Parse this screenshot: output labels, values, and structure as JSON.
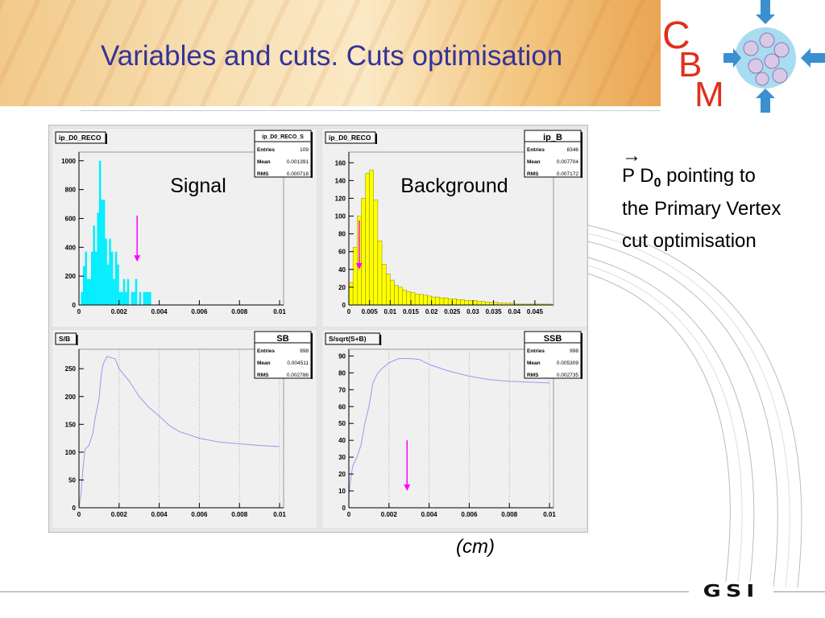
{
  "slide": {
    "title": "Variables and cuts. Cuts optimisation",
    "side_arrow": "→",
    "side_line1_a": "P D",
    "side_line1_sub": "0",
    "side_line1_b": " pointing to",
    "side_line2": "the Primary Vertex",
    "side_line3": "cut optimisation",
    "unit_label": "(cm)",
    "logo_text": "CBM",
    "footer_logo_text": "GSI"
  },
  "colors": {
    "title": "#33339a",
    "signal_fill": "#00eeff",
    "background_fill": "#ffff00",
    "curve": "#9999ee",
    "arrow": "#ff00ff"
  },
  "chart_data": [
    {
      "type": "bar",
      "title": "ip_D0_RECO",
      "label": "Signal",
      "stats": {
        "name": "ip_D0_RECO_S",
        "entries": "109",
        "mean": "0.001391",
        "rms": "0.000718"
      },
      "xlim": [
        0,
        0.0102
      ],
      "ylim": [
        0,
        1060
      ],
      "xticks": [
        "0",
        "0.002",
        "0.004",
        "0.006",
        "0.008",
        "0.01"
      ],
      "xtick_values": [
        0,
        0.002,
        0.004,
        0.006,
        0.008,
        0.01
      ],
      "yticks": [
        0,
        200,
        400,
        600,
        800,
        1000
      ],
      "bin_start": 0.0001,
      "bin_width": 0.0001,
      "values": [
        90,
        270,
        370,
        180,
        180,
        370,
        550,
        370,
        640,
        1000,
        730,
        730,
        460,
        280,
        460,
        370,
        180,
        370,
        280,
        90,
        90,
        180,
        90,
        180,
        0,
        90,
        90,
        180,
        0,
        90,
        0,
        90,
        90,
        90,
        90
      ],
      "arrow": {
        "x": 0.0029,
        "from": 620,
        "to": 300
      }
    },
    {
      "type": "bar",
      "title": "ip_D0_RECO",
      "label": "Background",
      "stats": {
        "name": "ip_B",
        "entries": "8346",
        "mean": "0.007704",
        "rms": "0.007172"
      },
      "xlim": [
        0,
        0.0495
      ],
      "ylim": [
        0,
        172
      ],
      "xticks": [
        "0",
        "0.005",
        "0.01",
        "0.015",
        "0.02",
        "0.025",
        "0.03",
        "0.035",
        "0.04",
        "0.045"
      ],
      "xtick_values": [
        0,
        0.005,
        0.01,
        0.015,
        0.02,
        0.025,
        0.03,
        0.035,
        0.04,
        0.045
      ],
      "yticks": [
        0,
        20,
        40,
        60,
        80,
        100,
        120,
        140,
        160
      ],
      "bin_start": 0,
      "bin_width": 0.001,
      "values": [
        25,
        65,
        100,
        120,
        148,
        152,
        118,
        72,
        46,
        35,
        28,
        22,
        20,
        17,
        15,
        14,
        12,
        12,
        11,
        10,
        9,
        9,
        8,
        8,
        7,
        7,
        6,
        6,
        5,
        5,
        5,
        4,
        4,
        3,
        3,
        3,
        2,
        2,
        2,
        2,
        1,
        1,
        1,
        1,
        1,
        1,
        1,
        1,
        1
      ],
      "arrow": {
        "x": 0.0025,
        "from": 95,
        "to": 40
      }
    },
    {
      "type": "line",
      "title": "S/B",
      "stats": {
        "name": "SB",
        "entries": "998",
        "mean": "0.004511",
        "rms": "0.002786"
      },
      "xlim": [
        0,
        0.0102
      ],
      "ylim": [
        0,
        285
      ],
      "xticks": [
        "0",
        "0.002",
        "0.004",
        "0.006",
        "0.008",
        "0.01"
      ],
      "xtick_values": [
        0,
        0.002,
        0.004,
        0.006,
        0.008,
        0.01
      ],
      "yticks": [
        0,
        50,
        100,
        150,
        200,
        250
      ],
      "x": [
        0,
        0.0001,
        0.0002,
        0.0003,
        0.0005,
        0.0007,
        0.0008,
        0.001,
        0.0011,
        0.0012,
        0.0014,
        0.0016,
        0.0018,
        0.002,
        0.0025,
        0.003,
        0.0035,
        0.004,
        0.0045,
        0.005,
        0.006,
        0.007,
        0.008,
        0.009,
        0.01
      ],
      "y": [
        0,
        25,
        70,
        105,
        112,
        135,
        160,
        195,
        235,
        258,
        272,
        270,
        268,
        250,
        228,
        200,
        180,
        165,
        148,
        137,
        125,
        118,
        115,
        112,
        110
      ]
    },
    {
      "type": "line",
      "title": "S/sqrt(S+B)",
      "stats": {
        "name": "SSB",
        "entries": "998",
        "mean": "0.005309",
        "rms": "0.002735"
      },
      "xlim": [
        0,
        0.0102
      ],
      "ylim": [
        0,
        94
      ],
      "xticks": [
        "0",
        "0.002",
        "0.004",
        "0.006",
        "0.008",
        "0.01"
      ],
      "xtick_values": [
        0,
        0.002,
        0.004,
        0.006,
        0.008,
        0.01
      ],
      "yticks": [
        0,
        10,
        20,
        30,
        40,
        50,
        60,
        70,
        80,
        90
      ],
      "x": [
        0,
        0.0001,
        0.0002,
        0.0004,
        0.0006,
        0.0008,
        0.001,
        0.0012,
        0.0014,
        0.0016,
        0.002,
        0.0025,
        0.003,
        0.0035,
        0.004,
        0.005,
        0.006,
        0.007,
        0.008,
        0.009,
        0.01
      ],
      "y": [
        8,
        18,
        25,
        30,
        37,
        50,
        60,
        74,
        79,
        82,
        86,
        88.5,
        88.5,
        88,
        85,
        81,
        78,
        76,
        75,
        74.5,
        74
      ],
      "arrow": {
        "x": 0.0029,
        "from": 40,
        "to": 10
      }
    }
  ]
}
